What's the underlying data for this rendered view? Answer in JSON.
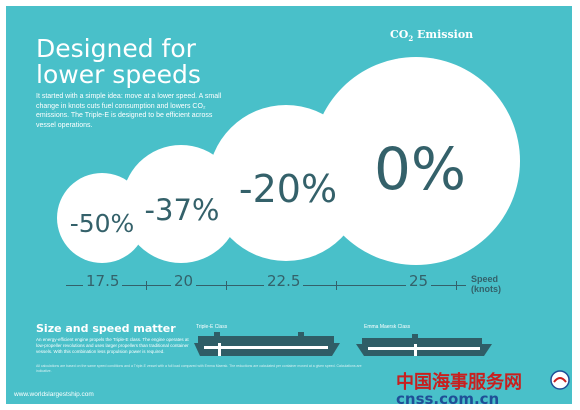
{
  "headline": {
    "line1": "Designed for",
    "line2": "lower speeds"
  },
  "intro_text": "It started with a simple idea: move at a lower speed. A small change in knots cuts fuel consumption and lowers CO₂ emissions. The Triple-E is designed to be efficient across vessel operations.",
  "emission_label": {
    "prefix": "CO",
    "subscript": "2",
    "suffix": " Emission"
  },
  "bubbles": [
    {
      "value": "-50%",
      "speed": "17.5"
    },
    {
      "value": "-37%",
      "speed": "20"
    },
    {
      "value": "-20%",
      "speed": "22.5"
    },
    {
      "value": "0%",
      "speed": "25"
    }
  ],
  "speed_unit": {
    "line1": "Speed",
    "line2": "(knots)"
  },
  "section": {
    "title": "Size and speed matter",
    "body": "An energy-efficient engine propels the Triple-E class. The engine operates at low-propeller revolutions and uses larger propellers than traditional container vessels. With this combination less propulsion power is required.",
    "fine_print": "All calculations are based on the same speed conditions and a Triple-E vessel with a full load compared with Emma Maersk. The reductions are calculated per container moved at a given speed. Calculations are indicative."
  },
  "ships": [
    {
      "label": "Triple-E Class"
    },
    {
      "label": "Emma Maersk Class"
    }
  ],
  "website": "www.worldslargestship.com",
  "watermark": {
    "chinese": "中国海事服务网",
    "url": "cnss.com.cn"
  },
  "colors": {
    "background": "#49c0c9",
    "bubble": "#ffffff",
    "bubble_text": "#34616a",
    "ship": "#2f5d66",
    "watermark_red": "#c8201f",
    "watermark_blue": "#1f4f97"
  }
}
